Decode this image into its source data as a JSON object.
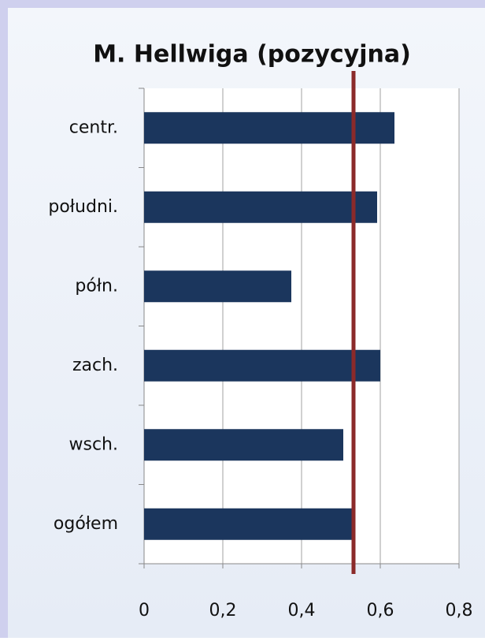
{
  "chart_data": {
    "type": "hbar",
    "title": "M. Hellwiga (pozycyjna)",
    "categories": [
      "centr.",
      "południ.",
      "półn.",
      "zach.",
      "wsch.",
      "ogółem"
    ],
    "values": [
      0.636,
      0.592,
      0.374,
      0.6,
      0.506,
      0.528
    ],
    "color": "#1b365d",
    "xlim": [
      0,
      0.8
    ],
    "xticks": [
      0,
      {
        "value": 0.2,
        "label": "0,2"
      },
      {
        "value": 0.4,
        "label": "0,4"
      },
      {
        "value": 0.6,
        "label": "0,6"
      },
      {
        "value": 0.8,
        "label": "0,8"
      }
    ],
    "grid": true,
    "reference_line": {
      "value": 0.532,
      "color": "#8b2a2a"
    }
  }
}
